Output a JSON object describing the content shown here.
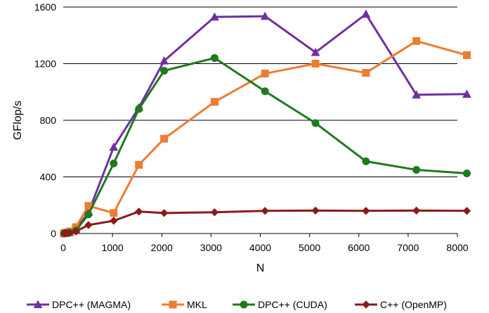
{
  "chart_data": {
    "type": "line",
    "title": "",
    "xlabel": "N",
    "ylabel": "GFlop/s",
    "xlim": [
      0,
      8000
    ],
    "ylim": [
      0,
      1600
    ],
    "xticks": [
      0,
      1000,
      2000,
      3000,
      4000,
      5000,
      6000,
      7000,
      8000
    ],
    "yticks": [
      0,
      400,
      800,
      1200,
      1600
    ],
    "grid": "horizontal",
    "legend_position": "bottom",
    "series": [
      {
        "name": "DPC++ (MAGMA)",
        "color": "#7030a0",
        "marker": "triangle",
        "x": [
          16,
          32,
          64,
          128,
          256,
          512,
          1024,
          1536,
          2048,
          3072,
          4096,
          5120,
          6144,
          7168,
          8192
        ],
        "y": [
          1,
          2,
          4,
          8,
          30,
          150,
          610,
          890,
          1220,
          1530,
          1535,
          1280,
          1550,
          980,
          985
        ]
      },
      {
        "name": "MKL",
        "color": "#ed7d31",
        "marker": "square",
        "x": [
          16,
          32,
          64,
          128,
          256,
          512,
          1024,
          1536,
          2048,
          3072,
          4096,
          5120,
          6144,
          7168,
          8192
        ],
        "y": [
          1,
          2,
          6,
          15,
          45,
          195,
          145,
          485,
          670,
          930,
          1130,
          1200,
          1135,
          1360,
          1260
        ]
      },
      {
        "name": "DPC++ (CUDA)",
        "color": "#1e7a1e",
        "marker": "circle",
        "x": [
          16,
          32,
          64,
          128,
          256,
          512,
          1024,
          1536,
          2048,
          3072,
          4096,
          5120,
          6144,
          7168,
          8192
        ],
        "y": [
          1,
          2,
          3,
          6,
          20,
          135,
          495,
          880,
          1150,
          1240,
          1005,
          780,
          510,
          450,
          425
        ]
      },
      {
        "name": "C++ (OpenMP)",
        "color": "#8b1a1a",
        "marker": "diamond",
        "x": [
          16,
          32,
          64,
          128,
          256,
          512,
          1024,
          1536,
          2048,
          3072,
          4096,
          5120,
          6144,
          7168,
          8192
        ],
        "y": [
          1,
          2,
          3,
          5,
          15,
          60,
          90,
          155,
          145,
          150,
          160,
          162,
          160,
          162,
          160
        ]
      }
    ]
  }
}
